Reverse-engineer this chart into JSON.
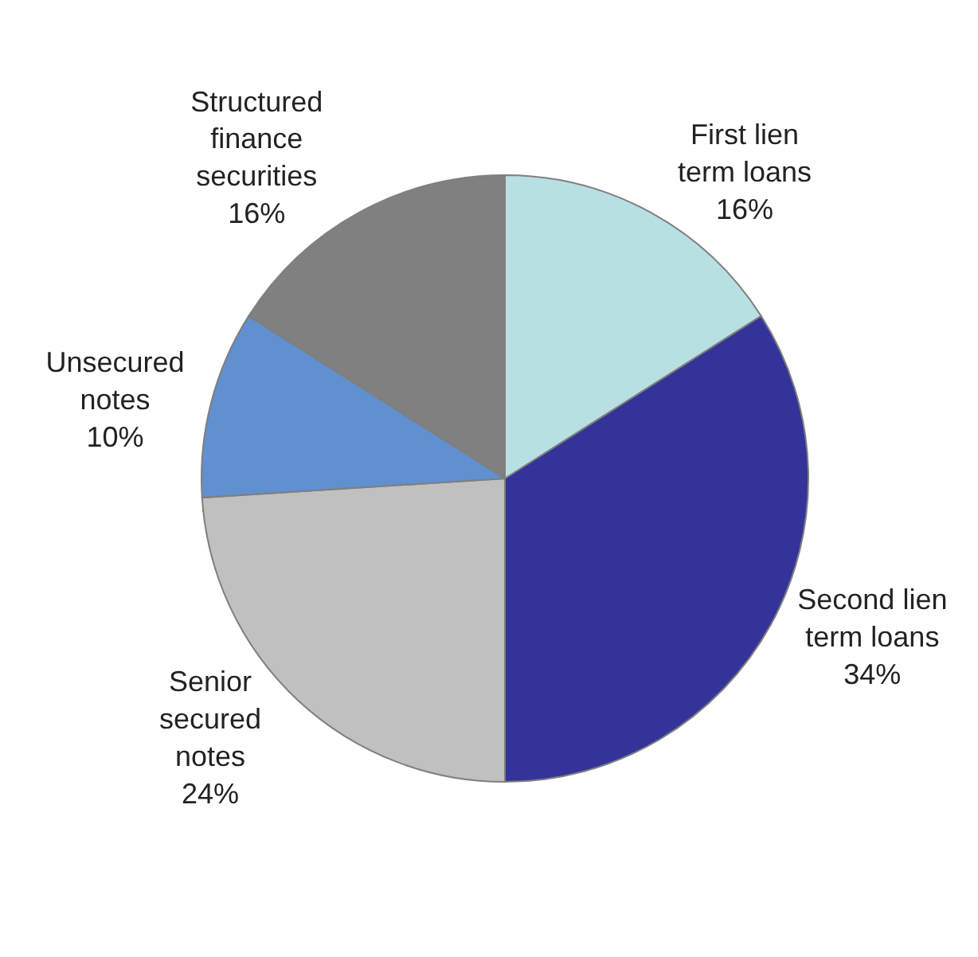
{
  "chart_data": {
    "type": "pie",
    "categories": [
      "First lien term loans",
      "Second lien term loans",
      "Senior secured notes",
      "Unsecured notes",
      "Structured finance securities"
    ],
    "values": [
      16,
      34,
      24,
      10,
      16
    ],
    "value_labels": [
      "16%",
      "34%",
      "24%",
      "10%",
      "16%"
    ],
    "colors": [
      "#b8e0e3",
      "#333399",
      "#c0c0c0",
      "#6090d0",
      "#808080"
    ]
  }
}
